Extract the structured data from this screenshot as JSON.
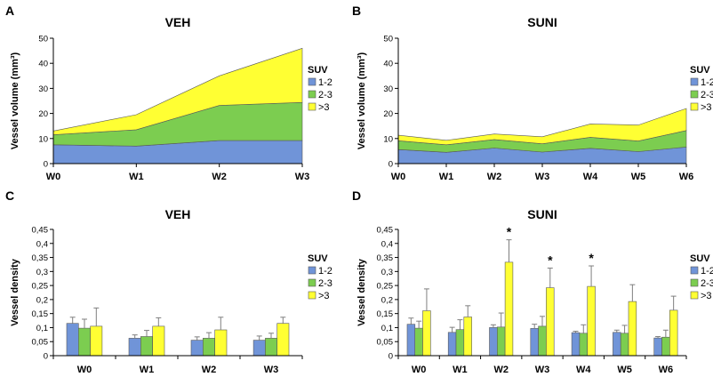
{
  "colors": {
    "s1": "#7094d8",
    "s2": "#7ccd50",
    "s3": "#ffff33",
    "err": "#7f7f7f",
    "outline": "#595959"
  },
  "chart_data": [
    {
      "panel": "A",
      "type": "area",
      "stacked": true,
      "title": "VEH",
      "ylabel": "Vessel volume (mm³)",
      "xlabel": "",
      "ylim": [
        0,
        50
      ],
      "yticks": [
        "0",
        "10",
        "20",
        "30",
        "40",
        "50"
      ],
      "categories": [
        "W0",
        "W1",
        "W2",
        "W3"
      ],
      "legend_title": "SUV",
      "series": [
        {
          "name": "1-2",
          "values": [
            7.5,
            7,
            9.2,
            9.2
          ]
        },
        {
          "name": "2-3",
          "values": [
            4,
            6.5,
            14,
            15.2
          ]
        },
        {
          "name": ">3",
          "values": [
            1.5,
            6,
            11.8,
            21.6
          ]
        }
      ]
    },
    {
      "panel": "B",
      "type": "area",
      "stacked": true,
      "title": "SUNI",
      "ylabel": "Vessel volume (mm³)",
      "xlabel": "",
      "ylim": [
        0,
        50
      ],
      "yticks": [
        "0",
        "10",
        "20",
        "30",
        "40",
        "50"
      ],
      "categories": [
        "W0",
        "W1",
        "W2",
        "W3",
        "W4",
        "W5",
        "W6"
      ],
      "legend_title": "SUV",
      "series": [
        {
          "name": "1-2",
          "values": [
            5.6,
            4.5,
            6.2,
            4.6,
            6.1,
            4.8,
            6.6
          ]
        },
        {
          "name": "2-3",
          "values": [
            3.5,
            3,
            3.4,
            3.3,
            4.4,
            4.2,
            6.6
          ]
        },
        {
          "name": ">3",
          "values": [
            2.2,
            1.8,
            2.2,
            2.8,
            5.3,
            6.4,
            8.8
          ]
        }
      ]
    },
    {
      "panel": "C",
      "type": "bar",
      "title": "VEH",
      "ylabel": "Vessel density",
      "xlabel": "",
      "ylim": [
        0,
        0.45
      ],
      "yticks": [
        "0",
        "0,05",
        "0,1",
        "0,15",
        "0,2",
        "0,25",
        "0,3",
        "0,35",
        "0,4",
        "0,45"
      ],
      "categories": [
        "W0",
        "W1",
        "W2",
        "W3"
      ],
      "legend_title": "SUV",
      "series": [
        {
          "name": "1-2",
          "values": [
            0.115,
            0.062,
            0.055,
            0.055
          ],
          "errors": [
            0.022,
            0.012,
            0.012,
            0.015
          ]
        },
        {
          "name": "2-3",
          "values": [
            0.098,
            0.068,
            0.062,
            0.062
          ],
          "errors": [
            0.032,
            0.022,
            0.02,
            0.018
          ]
        },
        {
          "name": ">3",
          "values": [
            0.105,
            0.105,
            0.092,
            0.115
          ],
          "errors": [
            0.065,
            0.03,
            0.045,
            0.022
          ]
        }
      ]
    },
    {
      "panel": "D",
      "type": "bar",
      "title": "SUNI",
      "ylabel": "Vessel density",
      "xlabel": "",
      "ylim": [
        0,
        0.45
      ],
      "yticks": [
        "0",
        "0,05",
        "0,1",
        "0,15",
        "0,2",
        "0,25",
        "0,3",
        "0,35",
        "0,4",
        "0,45"
      ],
      "categories": [
        "W0",
        "W1",
        "W2",
        "W3",
        "W4",
        "W5",
        "W6"
      ],
      "legend_title": "SUV",
      "annotation": "*",
      "series": [
        {
          "name": "1-2",
          "values": [
            0.112,
            0.083,
            0.1,
            0.097,
            0.082,
            0.083,
            0.063
          ],
          "errors": [
            0.022,
            0.018,
            0.01,
            0.015,
            0.005,
            0.008,
            0.005
          ]
        },
        {
          "name": "2-3",
          "values": [
            0.098,
            0.093,
            0.102,
            0.105,
            0.08,
            0.08,
            0.066
          ],
          "errors": [
            0.025,
            0.035,
            0.05,
            0.035,
            0.03,
            0.028,
            0.025
          ]
        },
        {
          "name": ">3",
          "values": [
            0.16,
            0.138,
            0.333,
            0.242,
            0.247,
            0.193,
            0.162
          ],
          "errors": [
            0.078,
            0.04,
            0.08,
            0.07,
            0.073,
            0.06,
            0.05
          ]
        }
      ],
      "significant_categories": [
        "W2",
        "W3",
        "W4"
      ]
    }
  ]
}
